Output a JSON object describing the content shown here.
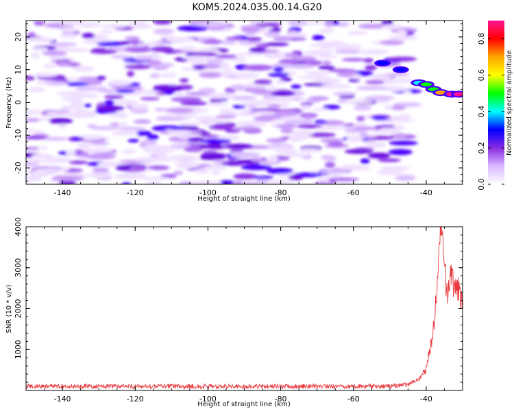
{
  "title": "KOM5.2024.035.00.14.G20",
  "chart_data": [
    {
      "type": "heatmap",
      "xlabel": "Height of straight line (km)",
      "ylabel": "Frequency (Hz)",
      "xlim": [
        -150,
        -30
      ],
      "ylim": [
        -25,
        25
      ],
      "xticks": [
        -140,
        -120,
        -100,
        -80,
        -60,
        -40
      ],
      "yticks": [
        -20,
        -10,
        0,
        10,
        20
      ],
      "colorbar": {
        "label": "Normalized spectral amplitude",
        "range": [
          0,
          0.9
        ],
        "ticks": [
          "0.0",
          "0.2",
          "0.4",
          "0.6",
          "0.8"
        ],
        "colormap": [
          "#ffffff",
          "#d9b8ff",
          "#8a2be2",
          "#0000ff",
          "#00ffff",
          "#00ff00",
          "#ffff00",
          "#ffa500",
          "#ff0000",
          "#ff1493"
        ]
      },
      "signal_track": [
        {
          "x": -52,
          "y": 12,
          "value": 0.25
        },
        {
          "x": -47,
          "y": 10,
          "value": 0.3
        },
        {
          "x": -42,
          "y": 6,
          "value": 0.4
        },
        {
          "x": -40,
          "y": 5.5,
          "value": 0.45
        },
        {
          "x": -38,
          "y": 4,
          "value": 0.5
        },
        {
          "x": -36,
          "y": 3,
          "value": 0.65
        },
        {
          "x": -33,
          "y": 2.5,
          "value": 0.85
        },
        {
          "x": -31,
          "y": 2.5,
          "value": 0.9
        }
      ],
      "background": "noise",
      "background_level": 0.12
    },
    {
      "type": "line",
      "xlabel": "Height of straight line (km)",
      "ylabel": "SNR (10 * v/v)",
      "xlim": [
        -150,
        -30
      ],
      "ylim": [
        0,
        4000
      ],
      "xticks": [
        -140,
        -120,
        -100,
        -80,
        -60,
        -40
      ],
      "yticks": [
        1000,
        2000,
        3000,
        4000
      ],
      "series": [
        {
          "color": "#e8383d",
          "baseline": 100,
          "noise": 55,
          "points": [
            {
              "x": -150,
              "y": 100
            },
            {
              "x": -50,
              "y": 100
            },
            {
              "x": -45,
              "y": 140
            },
            {
              "x": -42,
              "y": 280
            },
            {
              "x": -40,
              "y": 500
            },
            {
              "x": -39,
              "y": 1000
            },
            {
              "x": -38,
              "y": 1500
            },
            {
              "x": -37.5,
              "y": 2100
            },
            {
              "x": -37,
              "y": 2600
            },
            {
              "x": -36.5,
              "y": 3300
            },
            {
              "x": -36,
              "y": 3900
            },
            {
              "x": -35.5,
              "y": 3700
            },
            {
              "x": -35,
              "y": 3100
            },
            {
              "x": -34.5,
              "y": 2600
            },
            {
              "x": -34,
              "y": 2400
            },
            {
              "x": -33.5,
              "y": 2700
            },
            {
              "x": -33,
              "y": 2950
            },
            {
              "x": -32.5,
              "y": 2500
            },
            {
              "x": -32,
              "y": 2350
            },
            {
              "x": -31.5,
              "y": 2600
            },
            {
              "x": -31,
              "y": 2400
            },
            {
              "x": -30.5,
              "y": 2200
            },
            {
              "x": -30,
              "y": 2250
            }
          ]
        }
      ]
    }
  ]
}
